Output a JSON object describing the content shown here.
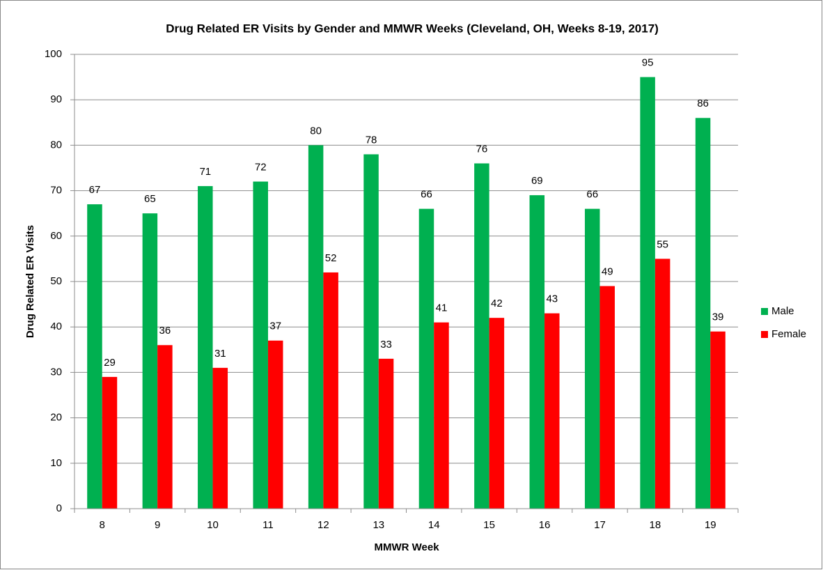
{
  "chart_data": {
    "type": "bar",
    "title": "Drug Related ER Visits by Gender and MMWR Weeks (Cleveland, OH, Weeks 8-19, 2017)",
    "x_label": "MMWR Week",
    "y_label": "Drug Related ER Visits",
    "categories": [
      "8",
      "9",
      "10",
      "11",
      "12",
      "13",
      "14",
      "15",
      "16",
      "17",
      "18",
      "19"
    ],
    "series": [
      {
        "name": "Male",
        "color": "#00b050",
        "values": [
          67,
          65,
          71,
          72,
          80,
          78,
          66,
          76,
          69,
          66,
          95,
          86
        ]
      },
      {
        "name": "Female",
        "color": "#ff0000",
        "values": [
          29,
          36,
          31,
          37,
          52,
          33,
          41,
          42,
          43,
          49,
          55,
          39
        ]
      }
    ],
    "ylim": [
      0,
      100
    ],
    "yticks": [
      0,
      10,
      20,
      30,
      40,
      50,
      60,
      70,
      80,
      90,
      100
    ],
    "grid": true,
    "legend": "right"
  }
}
